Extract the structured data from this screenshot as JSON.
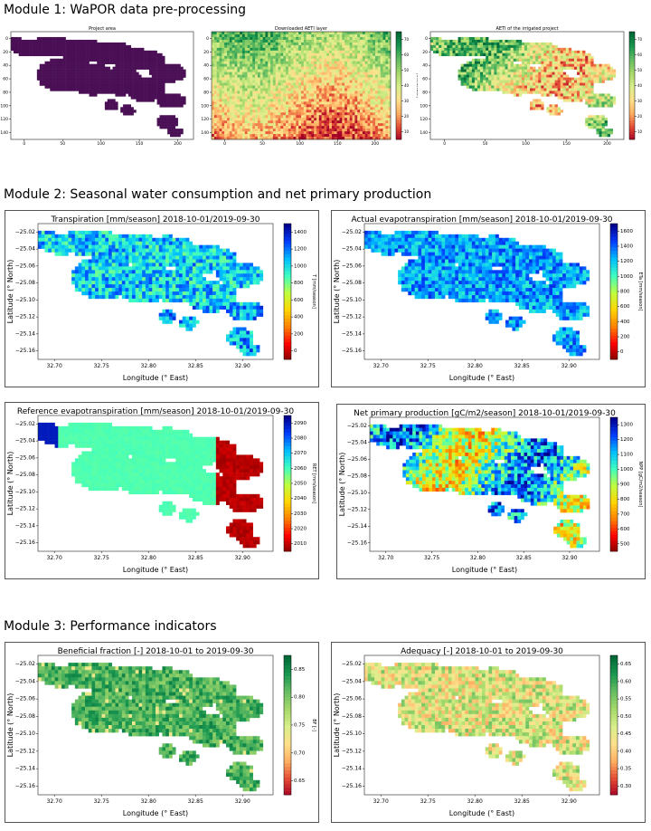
{
  "colors": {
    "project_area": "#4a0f55",
    "map_edge": "#222222",
    "jet": [
      "#7f0000",
      "#ff0000",
      "#ff8000",
      "#ffd400",
      "#bfff40",
      "#40ffbf",
      "#00bfff",
      "#0040ff",
      "#00008f"
    ],
    "rdylgn": [
      "#a50026",
      "#e34a33",
      "#fdae61",
      "#fee08b",
      "#d9ef8b",
      "#a6d96a",
      "#66bd63",
      "#1a9850",
      "#006837"
    ]
  },
  "modules": [
    {
      "title": "Module 1: WaPOR data pre-processing"
    },
    {
      "title": "Module 2: Seasonal water consumption and net primary production"
    },
    {
      "title": "Module 3: Performance indicators"
    }
  ],
  "chart_data": [
    {
      "type": "heatmap",
      "title": "Project area",
      "value": "1 (inside project area)",
      "xticks": [
        "0",
        "50",
        "100",
        "150",
        "200"
      ],
      "yticks": [
        "0",
        "20",
        "40",
        "60",
        "80",
        "100",
        "120",
        "140"
      ],
      "xlim": [
        0,
        240
      ],
      "ylim": [
        150,
        0
      ],
      "colorbar": null
    },
    {
      "type": "heatmap",
      "title": "Downloaded AETI layer",
      "xticks": [
        "0",
        "50",
        "100",
        "150",
        "200"
      ],
      "yticks": [
        "0",
        "20",
        "40",
        "60",
        "80",
        "100",
        "120",
        "140"
      ],
      "xlim": [
        0,
        240
      ],
      "ylim": [
        150,
        0
      ],
      "colorbar": {
        "label": "[mm/decade]",
        "ticks": [
          "70",
          "60",
          "50",
          "40",
          "30",
          "20",
          "10"
        ],
        "range": [
          10,
          70
        ],
        "cmap": "rdylgn"
      }
    },
    {
      "type": "heatmap",
      "title": "AETI of the irrigated project",
      "xticks": [
        "0",
        "50",
        "100",
        "150",
        "200"
      ],
      "yticks": [
        "0",
        "20",
        "40",
        "60",
        "80",
        "100",
        "120",
        "140"
      ],
      "xlim": [
        0,
        240
      ],
      "ylim": [
        150,
        0
      ],
      "colorbar": {
        "label": "",
        "ticks": [
          "70",
          "60",
          "50",
          "40",
          "30",
          "20",
          "10"
        ],
        "range": [
          10,
          70
        ],
        "cmap": "rdylgn"
      }
    },
    {
      "type": "heatmap",
      "title": "Transpiration [mm/season] 2018-10-01/2019-09-30",
      "xlabel": "Longitude (° East)",
      "ylabel": "Latitude (° North)",
      "xticks": [
        "32.70",
        "32.75",
        "32.80",
        "32.85",
        "32.90"
      ],
      "yticks": [
        "−25.02",
        "−25.04",
        "−25.06",
        "−25.08",
        "−25.10",
        "−25.12",
        "−25.14",
        "−25.16"
      ],
      "xlim": [
        32.665,
        32.905
      ],
      "ylim": [
        -25.165,
        -25.015
      ],
      "colorbar": {
        "label": "T [mm/season]",
        "ticks": [
          "1400",
          "1200",
          "1000",
          "800",
          "600",
          "400",
          "200",
          "0"
        ],
        "range": [
          0,
          1500
        ],
        "cmap": "jet"
      }
    },
    {
      "type": "heatmap",
      "title": "Actual evapotranspiration [mm/season] 2018-10-01/2019-09-30",
      "xlabel": "Longitude (° East)",
      "ylabel": "Latitude (° North)",
      "xticks": [
        "32.70",
        "32.75",
        "32.80",
        "32.85",
        "32.90"
      ],
      "yticks": [
        "−25.02",
        "−25.04",
        "−25.06",
        "−25.08",
        "−25.10",
        "−25.12",
        "−25.14",
        "−25.16"
      ],
      "xlim": [
        32.665,
        32.905
      ],
      "ylim": [
        -25.165,
        -25.015
      ],
      "colorbar": {
        "label": "ETa [mm/season]",
        "ticks": [
          "1600",
          "1400",
          "1200",
          "1000",
          "800",
          "600",
          "400",
          "200",
          "0"
        ],
        "range": [
          0,
          1650
        ],
        "cmap": "jet"
      }
    },
    {
      "type": "heatmap",
      "title": "Reference evapotranspiration [mm/season] 2018-10-01/2019-09-30",
      "xlabel": "Longitude (° East)",
      "ylabel": "Latitude (° North)",
      "xticks": [
        "32.70",
        "32.75",
        "32.80",
        "32.85",
        "32.90"
      ],
      "yticks": [
        "−25.02",
        "−25.04",
        "−25.06",
        "−25.08",
        "−25.10",
        "−25.12",
        "−25.14",
        "−25.16"
      ],
      "xlim": [
        32.665,
        32.905
      ],
      "ylim": [
        -25.165,
        -25.015
      ],
      "colorbar": {
        "label": "RET [mm/season]",
        "ticks": [
          "2090",
          "2080",
          "2070",
          "2060",
          "2050",
          "2040",
          "2030",
          "2020",
          "2010"
        ],
        "range": [
          2005,
          2095
        ],
        "cmap": "jet"
      }
    },
    {
      "type": "heatmap",
      "title": "Net primary production [gC/m2/season] 2018-10-01/2019-09-30",
      "xlabel": "Longitude (° East)",
      "ylabel": "Latitude (° North)",
      "xticks": [
        "32.70",
        "32.75",
        "32.80",
        "32.85",
        "32.90"
      ],
      "yticks": [
        "−25.02",
        "−25.04",
        "−25.06",
        "−25.08",
        "−25.10",
        "−25.12",
        "−25.14",
        "−25.16"
      ],
      "xlim": [
        32.665,
        32.905
      ],
      "ylim": [
        -25.165,
        -25.015
      ],
      "colorbar": {
        "label": "NPP [gC/m2/season]",
        "ticks": [
          "1300",
          "1200",
          "1100",
          "1000",
          "900",
          "800",
          "700",
          "600",
          "500"
        ],
        "range": [
          450,
          1320
        ],
        "cmap": "jet"
      }
    },
    {
      "type": "heatmap",
      "title": "Beneficial fraction [-]  2018-10-01 to 2019-09-30",
      "xlabel": "Longitude (° East)",
      "ylabel": "Latitude (° North)",
      "xticks": [
        "32.70",
        "32.75",
        "32.80",
        "32.85",
        "32.90"
      ],
      "yticks": [
        "−25.02",
        "−25.04",
        "−25.06",
        "−25.08",
        "−25.10",
        "−25.12",
        "−25.14",
        "−25.16"
      ],
      "xlim": [
        32.665,
        32.905
      ],
      "ylim": [
        -25.165,
        -25.015
      ],
      "colorbar": {
        "label": "BF [-]",
        "ticks": [
          "0.85",
          "0.80",
          "0.75",
          "0.70",
          "0.65"
        ],
        "range": [
          0.61,
          0.88
        ],
        "cmap": "rdylgn"
      }
    },
    {
      "type": "heatmap",
      "title": "Adequacy [-]  2018-10-01 to 2019-09-30",
      "xlabel": "Longitude (° East)",
      "ylabel": "Latitude (° North)",
      "xticks": [
        "32.70",
        "32.75",
        "32.80",
        "32.85",
        "32.90"
      ],
      "yticks": [
        "−25.02",
        "−25.04",
        "−25.06",
        "−25.08",
        "−25.10",
        "−25.12",
        "−25.14",
        "−25.16"
      ],
      "xlim": [
        32.665,
        32.905
      ],
      "ylim": [
        -25.165,
        -25.015
      ],
      "colorbar": {
        "label": "",
        "ticks": [
          "0.65",
          "0.60",
          "0.55",
          "0.50",
          "0.45",
          "0.40",
          "0.35",
          "0.30"
        ],
        "range": [
          0.28,
          0.67
        ],
        "cmap": "rdylgn"
      }
    }
  ]
}
